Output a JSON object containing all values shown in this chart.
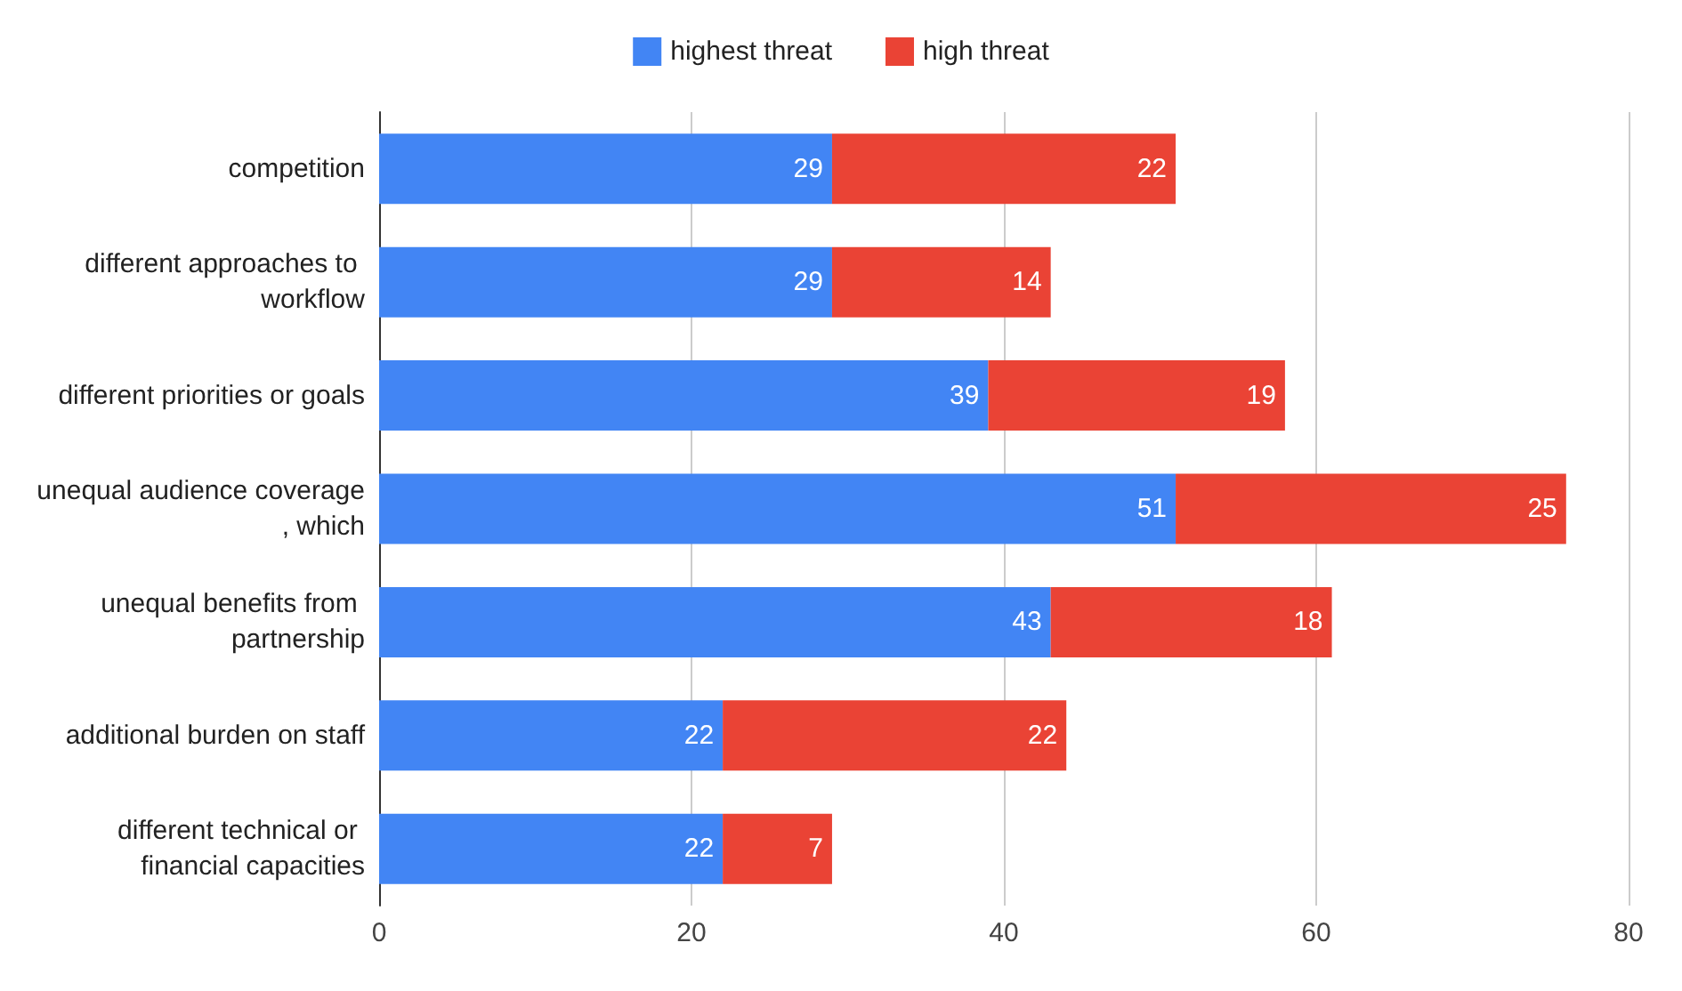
{
  "chart_data": {
    "type": "bar",
    "orientation": "horizontal",
    "stacked": true,
    "data_labels": true,
    "legend": "top",
    "grid": "x",
    "categories": [
      "competition",
      "different approaches to workflow",
      "different priorities or goals",
      "unequal audience coverage, which",
      "unequal benefits from partnership",
      "additional burden on staff",
      "different technical or financial capacities"
    ],
    "series": [
      {
        "name": "highest threat",
        "color": "#4285f4",
        "values": [
          29,
          29,
          39,
          51,
          43,
          22,
          22
        ]
      },
      {
        "name": "high threat",
        "color": "#ea4335",
        "values": [
          22,
          14,
          19,
          25,
          18,
          22,
          7
        ]
      }
    ],
    "xlim": [
      0,
      80
    ],
    "xticks": [
      0,
      20,
      40,
      60,
      80
    ]
  }
}
